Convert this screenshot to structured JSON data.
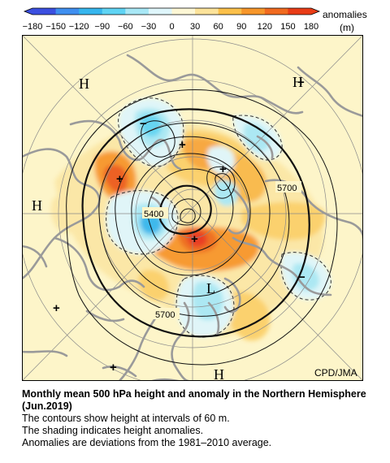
{
  "colorbar": {
    "tick_labels": [
      "−180",
      "−150",
      "−120",
      "−90",
      "−60",
      "−30",
      "0",
      "30",
      "60",
      "90",
      "120",
      "150",
      "180"
    ],
    "legend_label": "anomalies",
    "unit": "(m)",
    "colors": [
      "#3b4fe0",
      "#3f8ff0",
      "#36b6ee",
      "#5fd4f4",
      "#a8e8f6",
      "#dff6fb",
      "#fdf7d5",
      "#fce39a",
      "#fbc04a",
      "#f7962a",
      "#f16a1f",
      "#e93c16"
    ]
  },
  "map": {
    "background": "#fdf5c9",
    "credit": "CPD/JMA",
    "contour_labels": [
      "5700",
      "5400",
      "5700"
    ],
    "pressure_markers": [
      "H",
      "H",
      "H",
      "H",
      "L"
    ],
    "center_markers": [
      "+",
      "+",
      "+",
      "+",
      "+",
      "+",
      "+",
      "−",
      "−"
    ]
  },
  "caption": {
    "title": "Monthly mean 500 hPa height and anomaly in the Northern Hemisphere (Jun.2019)",
    "lines": [
      "The contours show height at intervals of 60 m.",
      "The shading indicates height anomalies.",
      "Anomalies are deviations from the 1981–2010 average."
    ]
  }
}
